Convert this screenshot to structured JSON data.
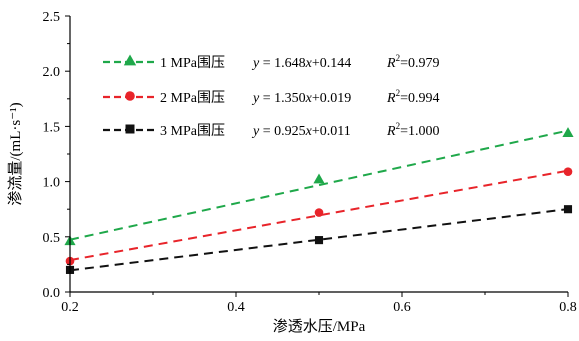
{
  "chart_data": {
    "type": "scatter",
    "title": "",
    "xlabel": "渗透水压/MPa",
    "ylabel": "渗流量/(mL·s⁻¹)",
    "xlim": [
      0.2,
      0.8
    ],
    "ylim": [
      0.0,
      2.5
    ],
    "xticks": [
      0.2,
      0.4,
      0.6,
      0.8
    ],
    "yticks": [
      0.0,
      0.5,
      1.0,
      1.5,
      2.0,
      2.5
    ],
    "xtick_labels": [
      "0.2",
      "0.4",
      "0.6",
      "0.8"
    ],
    "ytick_labels": [
      "0.0",
      "0.5",
      "1.0",
      "1.5",
      "2.0",
      "2.5"
    ],
    "grid": false,
    "legend_position": "top-left",
    "series": [
      {
        "name": "1 MPa围压",
        "color": "#1fa84a",
        "marker": "triangle",
        "x": [
          0.2,
          0.5,
          0.8
        ],
        "y": [
          0.46,
          1.02,
          1.44
        ],
        "fit": {
          "slope": 1.648,
          "intercept": 0.144
        },
        "equation": {
          "prefix": "y = ",
          "body": "1.648x+0.144"
        },
        "r2": {
          "label": "R2=",
          "value": "0.979"
        }
      },
      {
        "name": "2 MPa围压",
        "color": "#e8242a",
        "marker": "circle",
        "x": [
          0.2,
          0.5,
          0.8
        ],
        "y": [
          0.28,
          0.72,
          1.09
        ],
        "fit": {
          "slope": 1.35,
          "intercept": 0.019
        },
        "equation": {
          "prefix": "y = ",
          "body": "1.350x+0.019"
        },
        "r2": {
          "label": "R2=",
          "value": "0.994"
        }
      },
      {
        "name": "3 MPa围压",
        "color": "#111111",
        "marker": "square",
        "x": [
          0.2,
          0.5,
          0.8
        ],
        "y": [
          0.2,
          0.47,
          0.75
        ],
        "fit": {
          "slope": 0.925,
          "intercept": 0.011
        },
        "equation": {
          "prefix": "y = ",
          "body": "0.925x+0.011"
        },
        "r2": {
          "label": "R2=",
          "value": "1.000"
        }
      }
    ]
  }
}
